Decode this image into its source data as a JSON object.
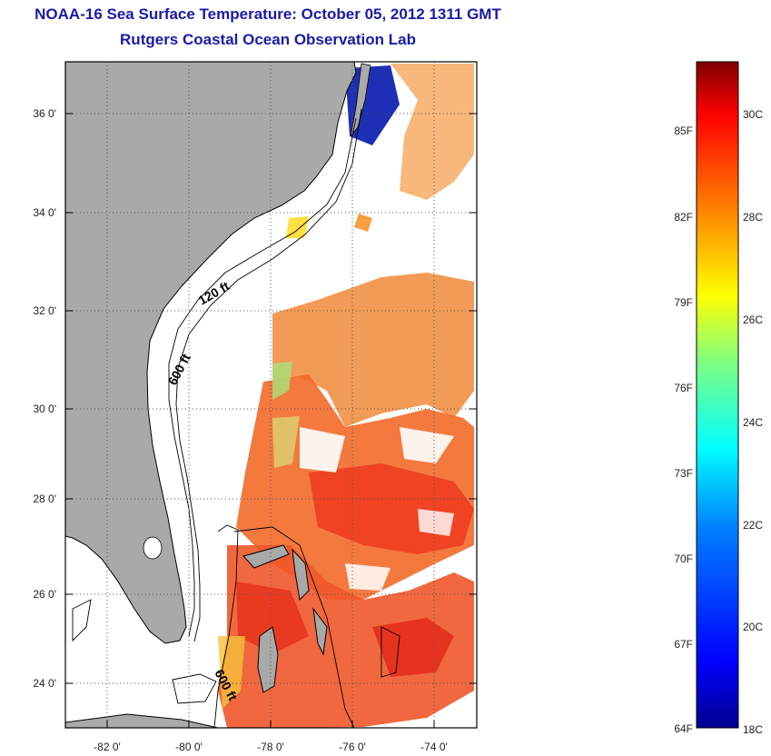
{
  "header": {
    "title": "NOAA-16 Sea Surface Temperature:  October 05, 2012 1311 GMT",
    "subtitle": "Rutgers Coastal Ocean Observation Lab"
  },
  "map": {
    "lat_labels": [
      "36 0'",
      "34 0'",
      "32 0'",
      "30 0'",
      "28 0'",
      "26 0'",
      "24 0'"
    ],
    "lon_labels": [
      "-82 0'",
      "-80 0'",
      "-78 0'",
      "-76 0'",
      "-74 0'"
    ],
    "contour_labels": [
      "120 ft",
      "600 ft",
      "600 ft"
    ],
    "colors": {
      "land": "#a9a9a9",
      "ocean": "#ffffff",
      "frame": "#000000"
    }
  },
  "colorbar": {
    "f_labels": [
      "85F",
      "82F",
      "79F",
      "76F",
      "73F",
      "70F",
      "67F",
      "64F"
    ],
    "c_labels": [
      "30C",
      "28C",
      "26C",
      "24C",
      "22C",
      "20C",
      "18C"
    ],
    "stops": [
      "#00008f",
      "#0000ff",
      "#0080ff",
      "#00ffff",
      "#80ff80",
      "#ffff00",
      "#ff8000",
      "#ff0000",
      "#800000"
    ]
  }
}
